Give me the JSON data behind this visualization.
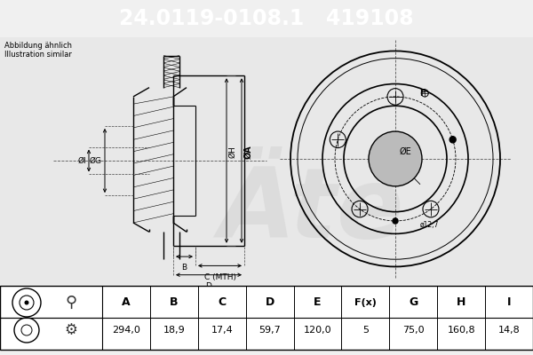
{
  "title_part_number": "24.0119-0108.1",
  "title_ref_number": "419108",
  "title_bg_color": "#1400ff",
  "title_text_color": "#ffffff",
  "note_line1": "Abbildung ähnlich",
  "note_line2": "Illustration similar",
  "table_headers": [
    "A",
    "B",
    "C",
    "D",
    "E",
    "F(x)",
    "G",
    "H",
    "I"
  ],
  "table_values": [
    "294,0",
    "18,9",
    "17,4",
    "59,7",
    "120,0",
    "5",
    "75,0",
    "160,8",
    "14,8"
  ],
  "bg_color": "#f0f0f0",
  "line_color": "#000000",
  "watermark_color": "#d8d8d8",
  "dim_line_color": "#333333"
}
